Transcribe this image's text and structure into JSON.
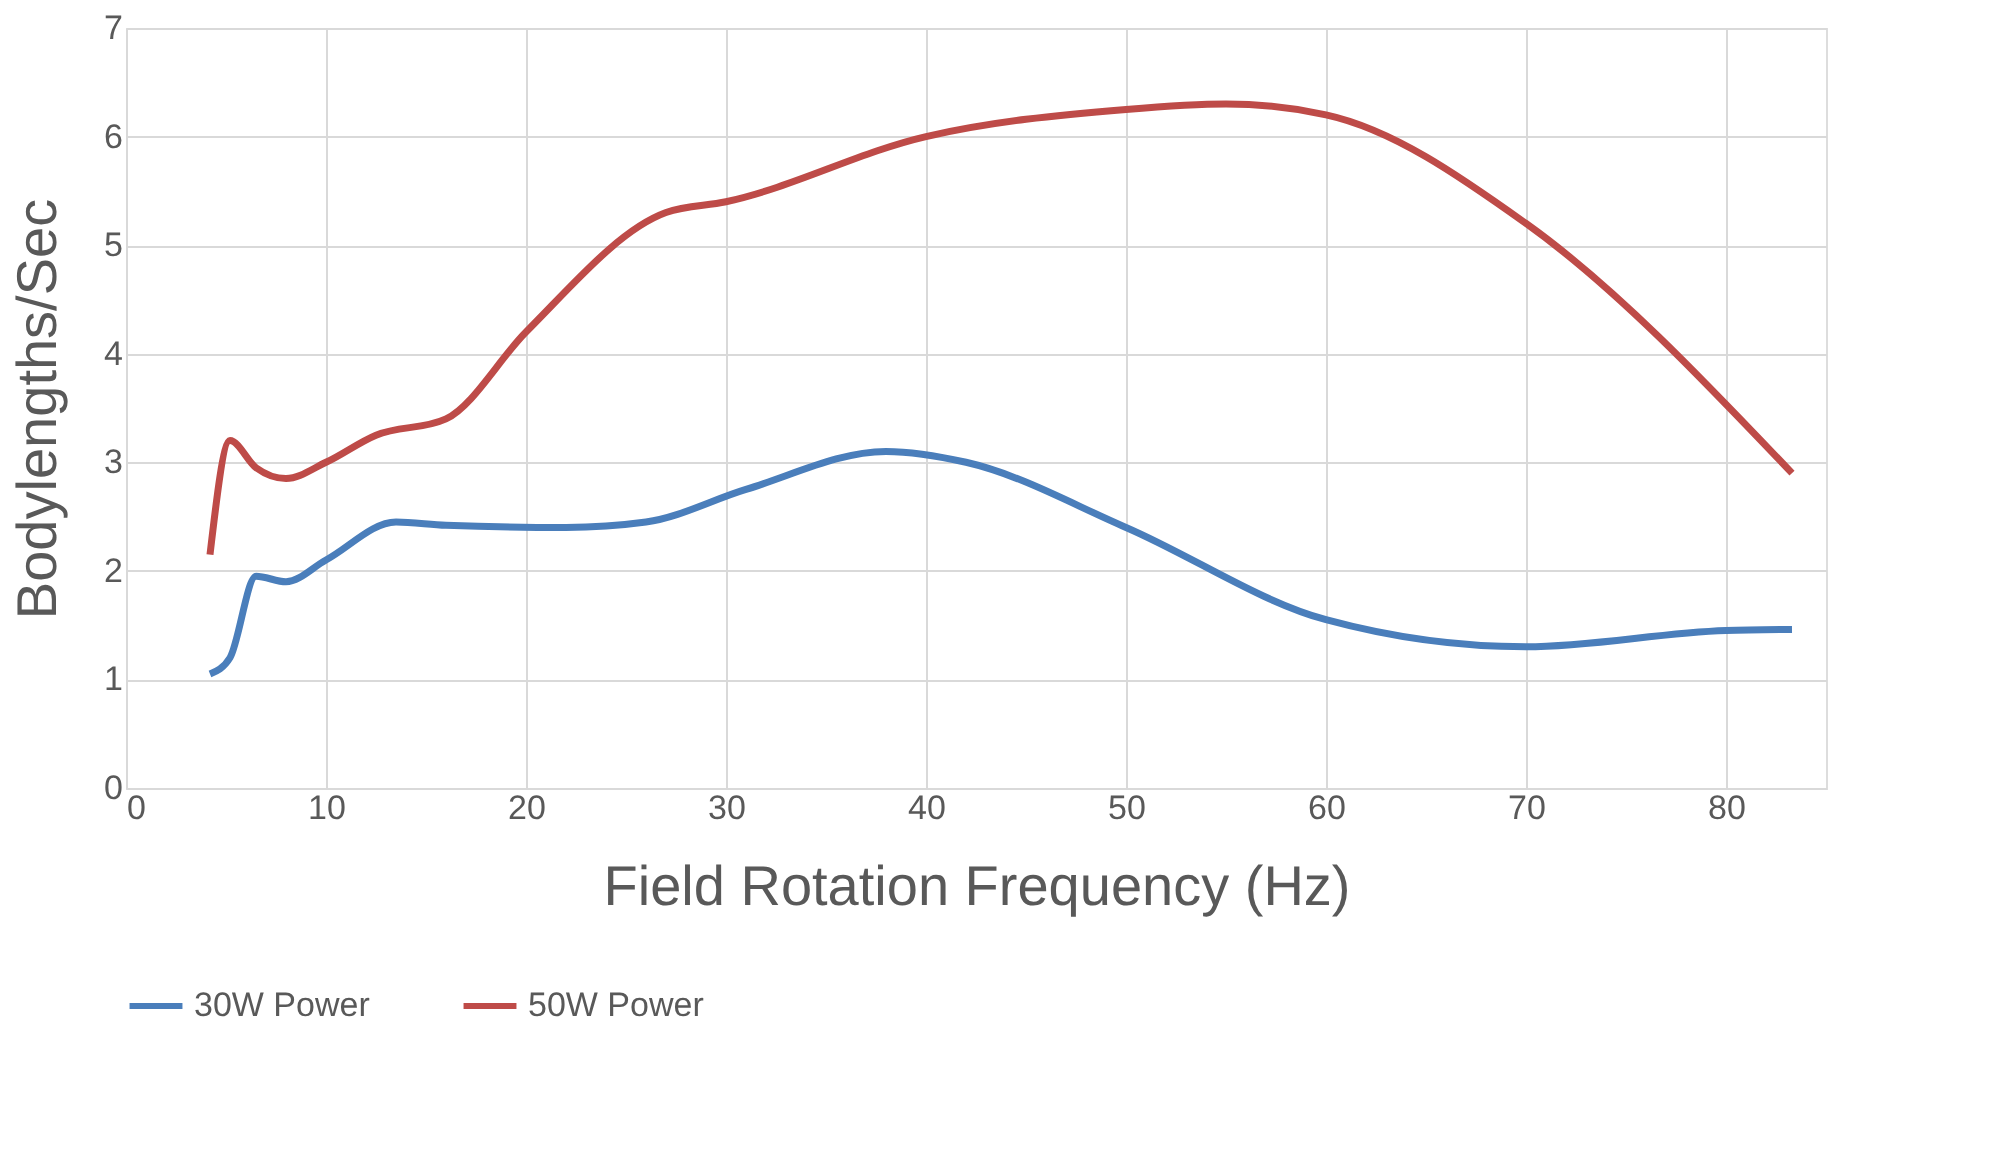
{
  "chart_data": {
    "type": "line",
    "xlabel": "Field Rotation Frequency (Hz)",
    "ylabel": "Bodylengths/Sec",
    "xlim": [
      0,
      85
    ],
    "xticks": [
      0,
      10,
      20,
      30,
      40,
      50,
      60,
      70,
      80
    ],
    "ylim": [
      0,
      7
    ],
    "yticks": [
      0,
      1,
      2,
      3,
      4,
      5,
      6,
      7
    ],
    "grid": true,
    "legend": "bottom",
    "marker": "none",
    "line_style": "solid",
    "series": [
      {
        "name": "30W Power",
        "color": "#4a7ebb",
        "x": [
          4.2,
          5.2,
          6.5,
          8,
          10,
          13.5,
          16,
          22,
          26,
          31,
          38,
          42,
          50,
          60,
          70,
          80,
          83.3
        ],
        "values": [
          1.05,
          1.2,
          1.95,
          1.9,
          2.1,
          2.45,
          2.42,
          2.4,
          2.45,
          2.75,
          3.1,
          3.0,
          2.4,
          1.55,
          1.3,
          1.45,
          1.46
        ]
      },
      {
        "name": "50W Power",
        "color": "#be4b48",
        "x": [
          4.2,
          5.2,
          6.5,
          8,
          10,
          12.5,
          16,
          20,
          27,
          30,
          40,
          50,
          55,
          60,
          70,
          83.3
        ],
        "values": [
          2.15,
          3.2,
          2.95,
          2.85,
          3.0,
          3.25,
          3.4,
          4.2,
          5.3,
          5.4,
          6.0,
          6.25,
          6.3,
          6.2,
          5.2,
          2.9
        ]
      }
    ]
  }
}
